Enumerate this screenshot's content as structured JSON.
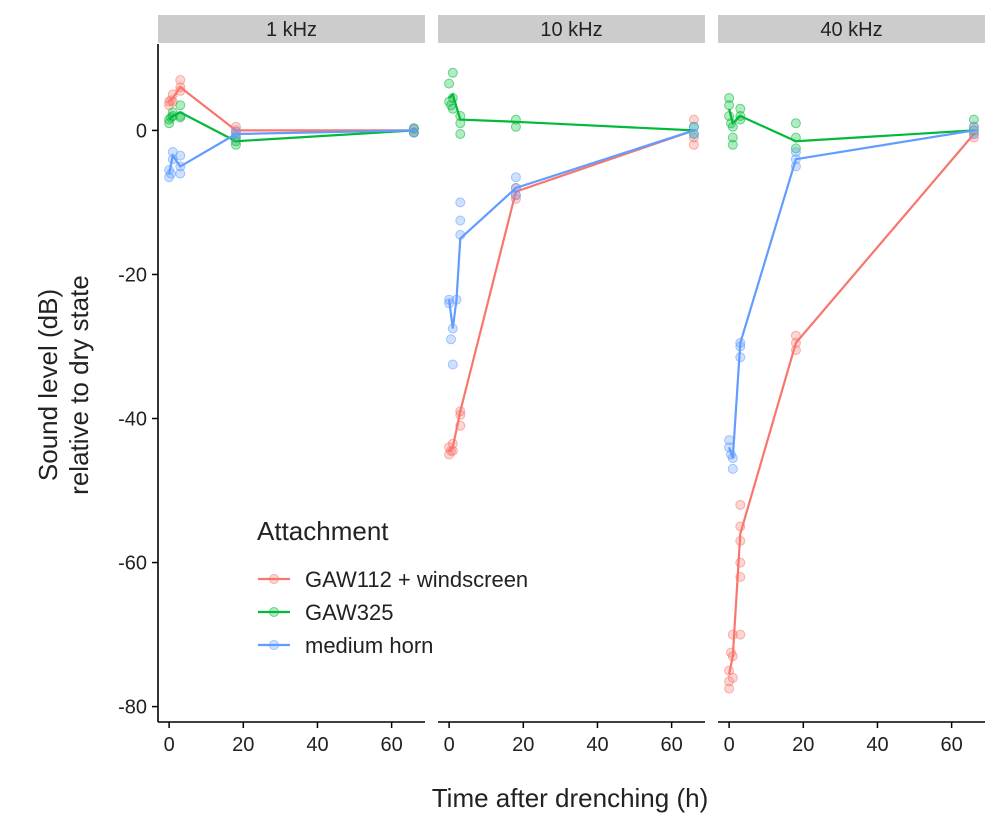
{
  "chart_data": {
    "type": "line",
    "xlabel": "Time after drenching (h)",
    "ylabel_lines": [
      "Sound level (dB)",
      "relative to dry state"
    ],
    "xlim": [
      -3,
      69
    ],
    "ylim": [
      -82,
      12
    ],
    "x_ticks": [
      0,
      20,
      40,
      60
    ],
    "y_ticks": [
      0,
      -20,
      -40,
      -60,
      -80
    ],
    "legend": {
      "title": "Attachment",
      "placement": "inside bottom-left",
      "entries": [
        {
          "name": "GAW112 + windscreen",
          "color": "#F8766D"
        },
        {
          "name": "GAW325",
          "color": "#00BA38"
        },
        {
          "name": "medium horn",
          "color": "#619CFF"
        }
      ]
    },
    "panels": [
      {
        "label": "1 kHz",
        "series": [
          {
            "name": "GAW112 + windscreen",
            "color": "#F8766D",
            "mean": [
              [
                0,
                4
              ],
              [
                1,
                4.5
              ],
              [
                3,
                6
              ],
              [
                18,
                0
              ],
              [
                66,
                0
              ]
            ],
            "points": [
              [
                0,
                3.5
              ],
              [
                0,
                4
              ],
              [
                0.5,
                4.2
              ],
              [
                1,
                5
              ],
              [
                1,
                4
              ],
              [
                3,
                7
              ],
              [
                3,
                6
              ],
              [
                3,
                5.5
              ],
              [
                18,
                0.5
              ],
              [
                18,
                0
              ],
              [
                18,
                -0.5
              ],
              [
                66,
                0.3
              ],
              [
                66,
                -0.3
              ]
            ]
          },
          {
            "name": "GAW325",
            "color": "#00BA38",
            "mean": [
              [
                0,
                1.5
              ],
              [
                1,
                2
              ],
              [
                3,
                2.5
              ],
              [
                18,
                -1.5
              ],
              [
                66,
                0
              ]
            ],
            "points": [
              [
                0,
                1
              ],
              [
                0,
                1.5
              ],
              [
                0.5,
                1.8
              ],
              [
                1,
                2.5
              ],
              [
                1,
                2
              ],
              [
                3,
                3.5
              ],
              [
                3,
                2
              ],
              [
                3,
                1.8
              ],
              [
                18,
                -1
              ],
              [
                18,
                -1.5
              ],
              [
                18,
                -2
              ],
              [
                66,
                0.3
              ],
              [
                66,
                -0.3
              ]
            ]
          },
          {
            "name": "medium horn",
            "color": "#619CFF",
            "mean": [
              [
                0,
                -6
              ],
              [
                1,
                -3.5
              ],
              [
                3,
                -5
              ],
              [
                18,
                -0.5
              ],
              [
                66,
                0
              ]
            ],
            "points": [
              [
                0,
                -5.5
              ],
              [
                0,
                -6.5
              ],
              [
                0.5,
                -6
              ],
              [
                1,
                -3
              ],
              [
                1,
                -4
              ],
              [
                3,
                -3.5
              ],
              [
                3,
                -5
              ],
              [
                3,
                -6
              ],
              [
                18,
                -0.2
              ],
              [
                18,
                -0.8
              ],
              [
                66,
                0.2
              ],
              [
                66,
                -0.3
              ]
            ]
          }
        ]
      },
      {
        "label": "10 kHz",
        "series": [
          {
            "name": "GAW112 + windscreen",
            "color": "#F8766D",
            "mean": [
              [
                0,
                -44.5
              ],
              [
                1,
                -44
              ],
              [
                3,
                -39
              ],
              [
                18,
                -8.5
              ],
              [
                66,
                0
              ]
            ],
            "points": [
              [
                0,
                -44
              ],
              [
                0,
                -45
              ],
              [
                0.5,
                -44.5
              ],
              [
                1,
                -43.5
              ],
              [
                1,
                -44.5
              ],
              [
                3,
                -39
              ],
              [
                3,
                -39.5
              ],
              [
                3,
                -41
              ],
              [
                18,
                -8
              ],
              [
                18,
                -9
              ],
              [
                18,
                -9.5
              ],
              [
                66,
                1.5
              ],
              [
                66,
                -1
              ],
              [
                66,
                -2
              ]
            ]
          },
          {
            "name": "GAW325",
            "color": "#00BA38",
            "mean": [
              [
                0,
                4.5
              ],
              [
                1,
                5
              ],
              [
                3,
                1.5
              ],
              [
                18,
                1.2
              ],
              [
                66,
                0
              ]
            ],
            "points": [
              [
                0,
                4
              ],
              [
                0,
                6.5
              ],
              [
                0.5,
                3.5
              ],
              [
                1,
                8
              ],
              [
                1,
                4.5
              ],
              [
                1,
                3
              ],
              [
                3,
                2
              ],
              [
                3,
                1
              ],
              [
                3,
                -0.5
              ],
              [
                18,
                1.5
              ],
              [
                18,
                0.5
              ],
              [
                66,
                0.5
              ],
              [
                66,
                -0.5
              ]
            ]
          },
          {
            "name": "medium horn",
            "color": "#619CFF",
            "mean": [
              [
                0,
                -23.5
              ],
              [
                1,
                -27.5
              ],
              [
                2,
                -23.5
              ],
              [
                3,
                -15
              ],
              [
                18,
                -8
              ],
              [
                66,
                0
              ]
            ],
            "points": [
              [
                0,
                -23.5
              ],
              [
                0,
                -24
              ],
              [
                0.5,
                -29
              ],
              [
                1,
                -27.5
              ],
              [
                1,
                -32.5
              ],
              [
                2,
                -23.5
              ],
              [
                3,
                -10
              ],
              [
                3,
                -12.5
              ],
              [
                3,
                -14.5
              ],
              [
                18,
                -6.5
              ],
              [
                18,
                -8
              ],
              [
                18,
                -9
              ],
              [
                66,
                0.5
              ],
              [
                66,
                -0.5
              ]
            ]
          }
        ]
      },
      {
        "label": "40 kHz",
        "series": [
          {
            "name": "GAW112 + windscreen",
            "color": "#F8766D",
            "mean": [
              [
                0,
                -75.5
              ],
              [
                1,
                -73
              ],
              [
                3,
                -56
              ],
              [
                18,
                -29.5
              ],
              [
                66,
                -0.5
              ]
            ],
            "points": [
              [
                0,
                -75
              ],
              [
                0,
                -76.5
              ],
              [
                0,
                -77.5
              ],
              [
                0.5,
                -72.5
              ],
              [
                1,
                -70
              ],
              [
                1,
                -73
              ],
              [
                1,
                -76
              ],
              [
                3,
                -52
              ],
              [
                3,
                -55
              ],
              [
                3,
                -57
              ],
              [
                3,
                -60
              ],
              [
                3,
                -62
              ],
              [
                3,
                -70
              ],
              [
                18,
                -28.5
              ],
              [
                18,
                -29.5
              ],
              [
                18,
                -30.5
              ],
              [
                66,
                0.5
              ],
              [
                66,
                -0.5
              ],
              [
                66,
                -1
              ]
            ]
          },
          {
            "name": "GAW325",
            "color": "#00BA38",
            "mean": [
              [
                0,
                3
              ],
              [
                1,
                1
              ],
              [
                3,
                2
              ],
              [
                18,
                -1.5
              ],
              [
                66,
                0
              ]
            ],
            "points": [
              [
                0,
                4.5
              ],
              [
                0,
                3.5
              ],
              [
                0,
                2
              ],
              [
                0.5,
                1
              ],
              [
                1,
                -1
              ],
              [
                1,
                -2
              ],
              [
                1,
                0.5
              ],
              [
                3,
                3
              ],
              [
                3,
                2
              ],
              [
                3,
                1.5
              ],
              [
                18,
                1
              ],
              [
                18,
                -1
              ],
              [
                18,
                -2.5
              ],
              [
                66,
                1.5
              ],
              [
                66,
                0
              ]
            ]
          },
          {
            "name": "medium horn",
            "color": "#619CFF",
            "mean": [
              [
                0,
                -44
              ],
              [
                1,
                -45.5
              ],
              [
                3,
                -29.5
              ],
              [
                18,
                -4
              ],
              [
                66,
                0
              ]
            ],
            "points": [
              [
                0,
                -43
              ],
              [
                0,
                -44
              ],
              [
                0.5,
                -45
              ],
              [
                1,
                -45.5
              ],
              [
                1,
                -47
              ],
              [
                3,
                -29.5
              ],
              [
                3,
                -30
              ],
              [
                3,
                -31.5
              ],
              [
                18,
                -3
              ],
              [
                18,
                -4
              ],
              [
                18,
                -5
              ],
              [
                66,
                0.5
              ],
              [
                66,
                -0.5
              ]
            ]
          }
        ]
      }
    ]
  }
}
